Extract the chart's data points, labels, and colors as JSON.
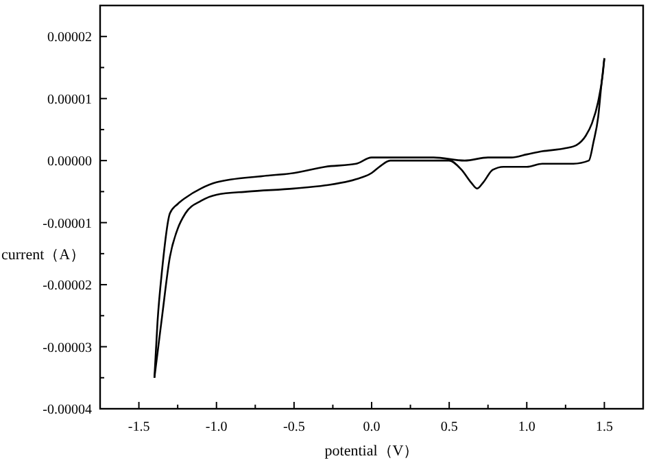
{
  "chart_data": {
    "type": "line",
    "xlabel": "potential（V）",
    "ylabel": "current（A）",
    "xlim": [
      -1.75,
      1.75
    ],
    "ylim": [
      -4e-05,
      2.5e-05
    ],
    "xticks": [
      {
        "value": -1.5,
        "label": "-1.5"
      },
      {
        "value": -1.25,
        "label": null
      },
      {
        "value": -1,
        "label": "-1.0"
      },
      {
        "value": -0.75,
        "label": null
      },
      {
        "value": -0.5,
        "label": "-0.5"
      },
      {
        "value": -0.25,
        "label": null
      },
      {
        "value": 0,
        "label": "0.0"
      },
      {
        "value": 0.25,
        "label": null
      },
      {
        "value": 0.5,
        "label": "0.5"
      },
      {
        "value": 0.75,
        "label": null
      },
      {
        "value": 1,
        "label": "1.0"
      },
      {
        "value": 1.25,
        "label": null
      },
      {
        "value": 1.5,
        "label": "1.5"
      }
    ],
    "yticks": [
      {
        "value": -4e-05,
        "label": "-0.00004"
      },
      {
        "value": -3.5e-05,
        "label": null
      },
      {
        "value": -3e-05,
        "label": "-0.00003"
      },
      {
        "value": -2.5e-05,
        "label": null
      },
      {
        "value": -2e-05,
        "label": "-0.00002"
      },
      {
        "value": -1.5e-05,
        "label": null
      },
      {
        "value": -1e-05,
        "label": "-0.00001"
      },
      {
        "value": -5e-06,
        "label": null
      },
      {
        "value": 0,
        "label": "0.00000"
      },
      {
        "value": 5e-06,
        "label": null
      },
      {
        "value": 1e-05,
        "label": "0.00001"
      },
      {
        "value": 1.5e-05,
        "label": null
      },
      {
        "value": 2e-05,
        "label": "0.00002"
      }
    ],
    "grid": false,
    "marker": "none",
    "line_style": "solid",
    "series": [
      {
        "color": "#000000",
        "x": [
          -1.4,
          -1.38,
          -1.35,
          -1.3,
          -1.25,
          -1.2,
          -1.1,
          -1.0,
          -0.7,
          -0.5,
          -0.3,
          -0.1,
          0.0,
          0.2,
          0.4,
          0.6,
          0.75,
          0.9,
          1.0,
          1.1,
          1.25,
          1.32,
          1.38,
          1.42,
          1.46,
          1.49,
          1.5
        ],
        "values": [
          -3.5e-05,
          -2.6e-05,
          -1.75e-05,
          -8.5e-06,
          -7e-06,
          -6e-06,
          -4.5e-06,
          -3.5e-06,
          -2.5e-06,
          -2e-06,
          -1e-06,
          -5e-07,
          5e-07,
          5e-07,
          5e-07,
          0.0,
          5e-07,
          5e-07,
          1e-06,
          1.5e-06,
          2e-06,
          2.5e-06,
          4e-06,
          6e-06,
          9.5e-06,
          1.4e-05,
          1.65e-05
        ]
      },
      {
        "color": "#000000",
        "x": [
          -1.4,
          -1.38,
          -1.35,
          -1.3,
          -1.25,
          -1.2,
          -1.1,
          -1.0,
          -0.8,
          -0.5,
          -0.3,
          -0.1,
          0.0,
          0.05,
          0.12,
          0.3,
          0.5,
          0.58,
          0.64,
          0.68,
          0.72,
          0.78,
          0.85,
          1.0,
          1.1,
          1.3,
          1.4,
          1.43,
          1.46,
          1.48,
          1.5
        ],
        "values": [
          -3.5e-05,
          -3.1e-05,
          -2.5e-05,
          -1.55e-05,
          -1.1e-05,
          -8.5e-06,
          -6.5e-06,
          -5.5e-06,
          -5e-06,
          -4.5e-06,
          -4e-06,
          -3e-06,
          -2e-06,
          -1e-06,
          0.0,
          0.0,
          0.0,
          -1.5e-06,
          -3.5e-06,
          -4.5e-06,
          -3.5e-06,
          -1.5e-06,
          -1e-06,
          -1e-06,
          -5e-07,
          -5e-07,
          0.0,
          3e-06,
          7e-06,
          1.2e-05,
          1.65e-05
        ]
      }
    ]
  }
}
